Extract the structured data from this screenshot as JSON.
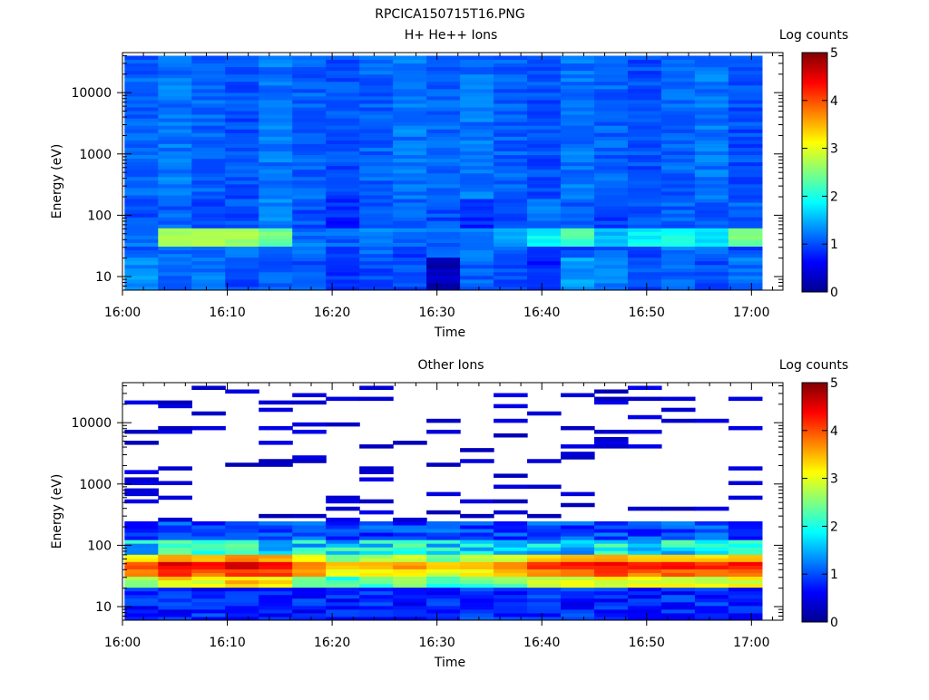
{
  "figure_title": "RPCICA150715T16.PNG",
  "chart_data": [
    {
      "type": "heatmap",
      "title": "H+ He++ Ions",
      "xlabel": "Time",
      "ylabel": "Energy (eV)",
      "x_tick_labels": [
        "16:00",
        "16:10",
        "16:20",
        "16:30",
        "16:40",
        "16:50",
        "17:00"
      ],
      "x_ticks": [
        "16:00",
        "16:10",
        "16:20",
        "16:30",
        "16:40",
        "16:50",
        "17:00"
      ],
      "x_range": [
        "16:00",
        "17:03"
      ],
      "y_scale": "log",
      "y_tick_labels": [
        "10",
        "100",
        "1000",
        "10000"
      ],
      "y_range": [
        6,
        45000
      ],
      "colorbar": {
        "label": "Log counts",
        "range": [
          0,
          5
        ],
        "tick_labels": [
          "0",
          "1",
          "2",
          "3",
          "4",
          "5"
        ]
      },
      "time_columns": 19,
      "column_levels": [
        [
          1.3,
          1.1,
          1.2,
          1.0,
          1.1,
          1.0,
          0.9,
          1.0,
          1.0,
          0.3,
          1.1,
          1.0,
          0.8,
          1.4,
          1.2,
          1.0,
          1.1,
          1.0,
          1.2
        ],
        [
          1.0,
          1.2,
          1.1,
          1.3,
          1.1,
          1.2,
          1.0,
          1.1,
          0.9,
          1.0,
          1.2,
          1.1,
          1.0,
          0.9,
          1.1,
          1.0,
          1.2,
          1.1,
          1.0
        ],
        [
          1.2,
          2.7,
          2.8,
          2.6,
          2.4,
          1.2,
          1.1,
          1.3,
          1.2,
          1.1,
          1.2,
          1.5,
          1.9,
          2.2,
          1.6,
          1.9,
          2.0,
          1.8,
          2.4
        ],
        [
          1.0,
          1.1,
          0.9,
          1.0,
          1.3,
          1.0,
          0.8,
          1.0,
          1.1,
          1.0,
          0.8,
          1.0,
          1.2,
          1.1,
          0.9,
          1.0,
          1.1,
          1.0,
          1.1
        ],
        [
          1.1,
          1.2,
          1.1,
          1.0,
          1.2,
          1.1,
          1.0,
          1.1,
          1.2,
          1.1,
          1.2,
          1.1,
          1.0,
          1.2,
          1.1,
          1.0,
          1.1,
          1.2,
          1.0
        ]
      ]
    },
    {
      "type": "heatmap",
      "title": "Other Ions",
      "xlabel": "Time",
      "ylabel": "Energy (eV)",
      "x_tick_labels": [
        "16:00",
        "16:10",
        "16:20",
        "16:30",
        "16:40",
        "16:50",
        "17:00"
      ],
      "x_ticks": [
        "16:00",
        "16:10",
        "16:20",
        "16:30",
        "16:40",
        "16:50",
        "17:00"
      ],
      "x_range": [
        "16:00",
        "17:03"
      ],
      "y_scale": "log",
      "y_tick_labels": [
        "10",
        "100",
        "1000",
        "10000"
      ],
      "y_range": [
        6,
        45000
      ],
      "colorbar": {
        "label": "Log counts",
        "range": [
          0,
          5
        ],
        "tick_labels": [
          "0",
          "1",
          "2",
          "3",
          "4",
          "5"
        ]
      },
      "time_columns": 19,
      "column_peak_levels": [
        4.0,
        4.5,
        4.3,
        4.6,
        4.4,
        3.9,
        3.4,
        3.6,
        3.7,
        3.3,
        3.6,
        3.8,
        4.2,
        4.3,
        4.4,
        4.2,
        4.3,
        4.2,
        4.3
      ],
      "sparse_high_energy_counts": "scattered low-level (about 0.2-0.5) counts above 300 eV, empty elsewhere"
    }
  ]
}
